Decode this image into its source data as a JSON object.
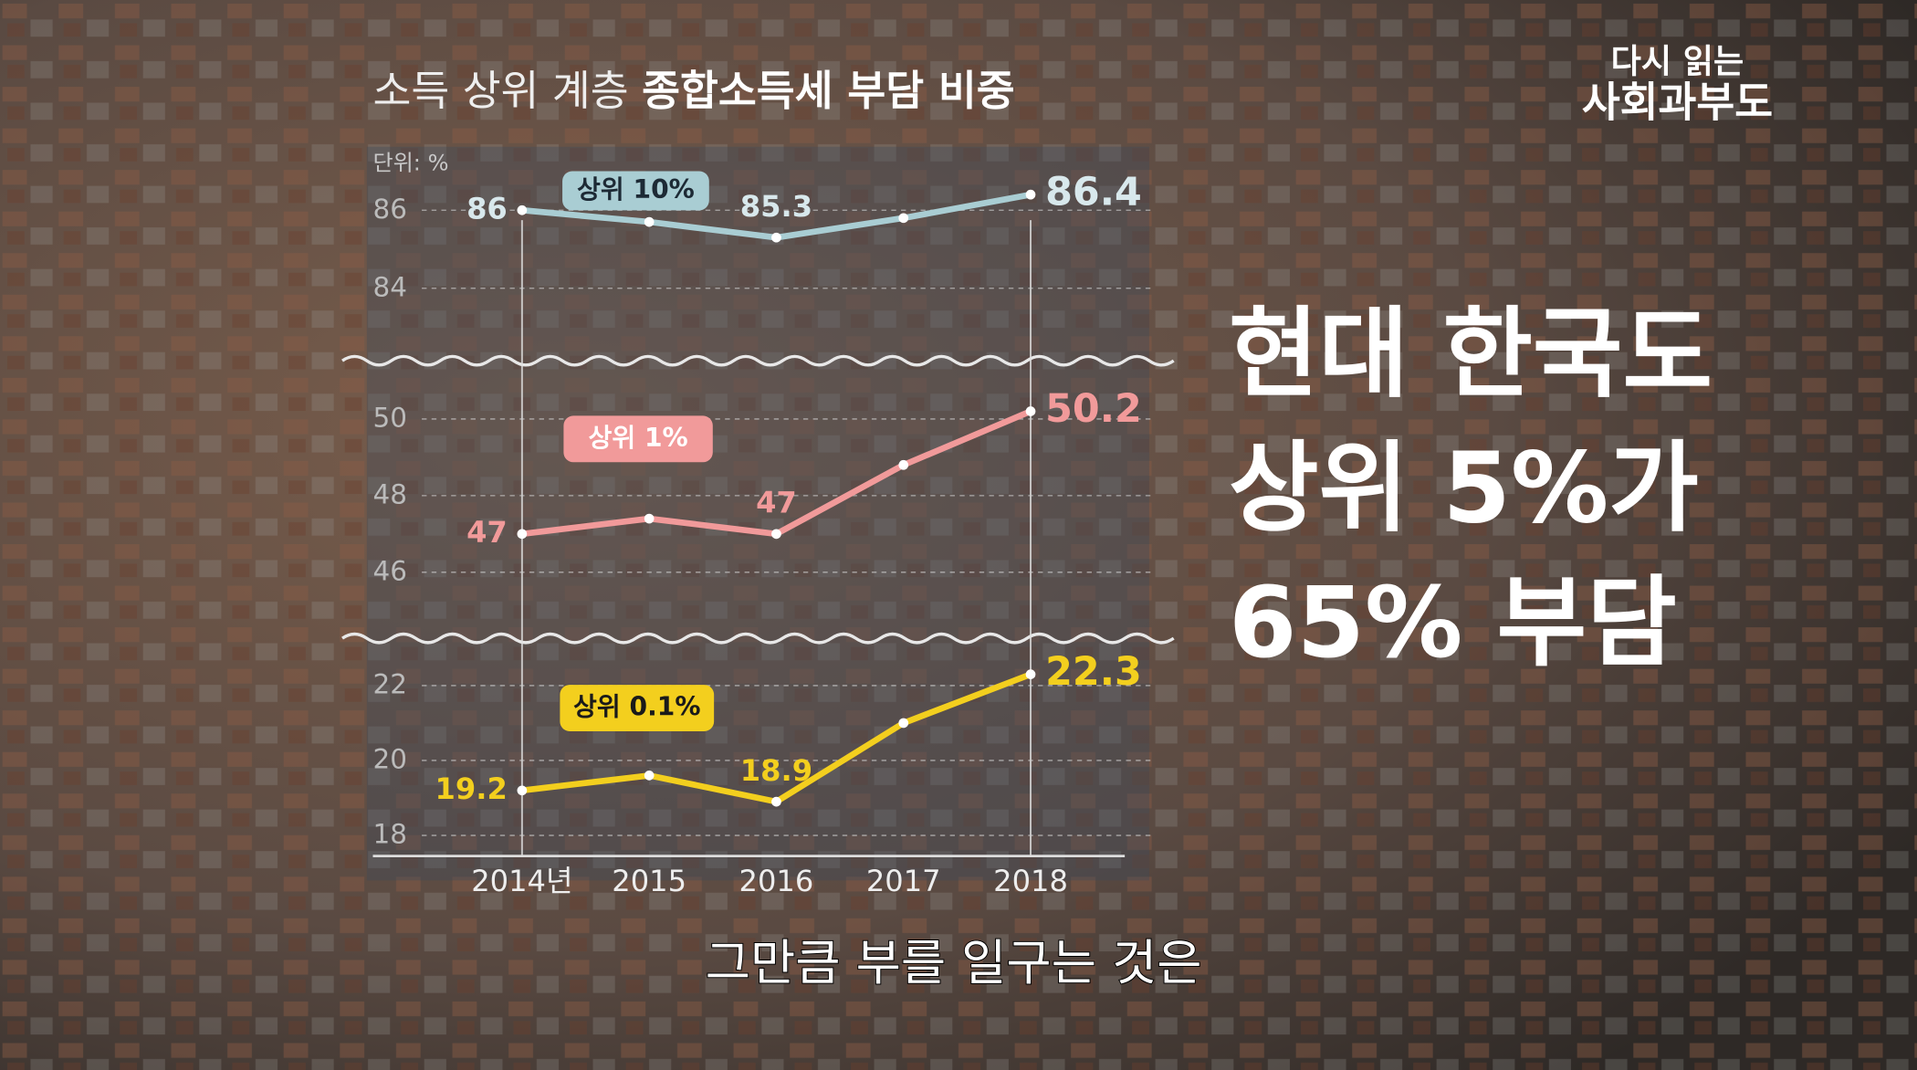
{
  "header": {
    "logo": [
      "다시 읽는",
      "사회과부도"
    ]
  },
  "chart_data": {
    "type": "line",
    "title": "소득 상위 계층",
    "title_emphasis": "종합소득세 부담 비중",
    "unit": "단위: %",
    "categories": [
      "2014년",
      "2015",
      "2016",
      "2017",
      "2018"
    ],
    "grid": true,
    "series": [
      {
        "name": "상위 10%",
        "color": "#a9cdd3",
        "values": [
          86,
          85.7,
          85.3,
          85.8,
          86.4
        ],
        "value_labels": [
          "86",
          null,
          "85.3",
          null,
          "86.4"
        ],
        "ylim": [
          82.3,
          87
        ],
        "yticks": [
          84,
          86
        ]
      },
      {
        "name": "상위 1%",
        "color": "#f19a9a",
        "values": [
          47,
          47.4,
          47,
          48.8,
          50.2
        ],
        "value_labels": [
          "47",
          null,
          "47",
          null,
          "50.2"
        ],
        "ylim": [
          44.5,
          51.2
        ],
        "yticks": [
          46,
          48,
          50
        ]
      },
      {
        "name": "상위 0.1%",
        "color": "#f3cf1e",
        "values": [
          19.2,
          19.6,
          18.9,
          21,
          22.3
        ],
        "value_labels": [
          "19.2",
          null,
          "18.9",
          null,
          "22.3"
        ],
        "ylim": [
          17.45,
          23
        ],
        "yticks": [
          18,
          20,
          22
        ]
      }
    ]
  },
  "caption": [
    "현대 한국도",
    "상위 5%가",
    "65% 부담"
  ],
  "subtitle": "그만큼 부를 일구는 것은"
}
